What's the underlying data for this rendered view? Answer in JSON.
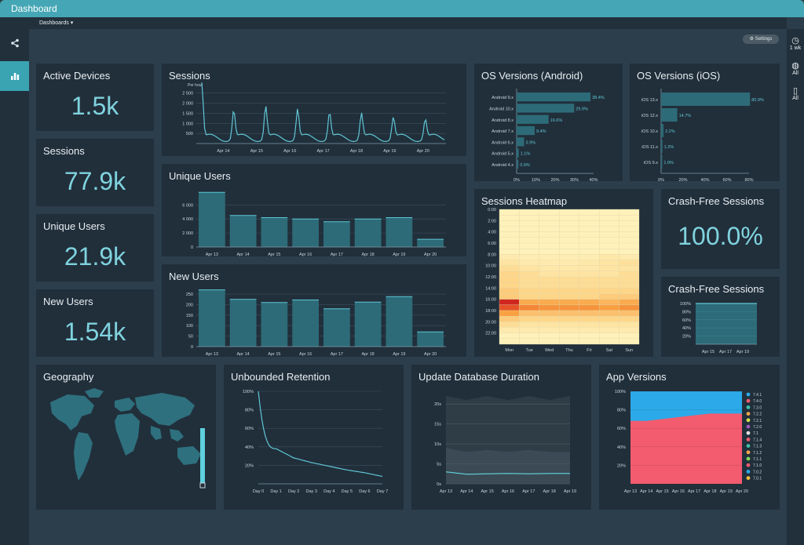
{
  "app": {
    "title": "Dashboard",
    "dashboards_label": "Dashboards",
    "settings_label": "Settings"
  },
  "rightnav": {
    "time": "1 wk",
    "region": "All",
    "device": "All"
  },
  "kpis": {
    "active_devices": {
      "title": "Active Devices",
      "value": "1.5k"
    },
    "sessions": {
      "title": "Sessions",
      "value": "77.9k"
    },
    "unique_users": {
      "title": "Unique Users",
      "value": "21.9k"
    },
    "new_users": {
      "title": "New Users",
      "value": "1.54k"
    },
    "crash_free": {
      "title": "Crash-Free Sessions",
      "value": "100.0%"
    }
  },
  "panels": {
    "sessions_chart": "Sessions",
    "unique_users_chart": "Unique Users",
    "new_users_chart": "New Users",
    "os_android": "OS Versions (Android)",
    "os_ios": "OS Versions (iOS)",
    "heatmap": "Sessions Heatmap",
    "crash_free_chart": "Crash-Free Sessions",
    "geography": "Geography",
    "retention": "Unbounded Retention",
    "update_db": "Update Database Duration",
    "app_versions": "App Versions"
  },
  "colors": {
    "accent": "#3aa4b3",
    "bar": "#2d6b78",
    "line": "#5fc6d4"
  },
  "chart_data": [
    {
      "id": "sessions",
      "type": "line",
      "ylabel": "Per hour",
      "yticks": [
        "2 500",
        "2 000",
        "1 500",
        "1 000",
        "500"
      ],
      "xticks": [
        "Apr 14",
        "Apr 15",
        "Apr 16",
        "Apr 17",
        "Apr 18",
        "Apr 19",
        "Apr 20"
      ],
      "ylim": [
        0,
        2800
      ],
      "peaks": [
        2750,
        1400,
        1600,
        1450,
        1300,
        1250,
        1050,
        950
      ]
    },
    {
      "id": "unique_users",
      "type": "bar",
      "categories": [
        "Apr 13",
        "Apr 14",
        "Apr 15",
        "Apr 16",
        "Apr 17",
        "Apr 18",
        "Apr 19",
        "Apr 20"
      ],
      "values": [
        7800,
        4500,
        4200,
        4000,
        3600,
        4000,
        4200,
        1100
      ],
      "yticks": [
        "6 000",
        "4 000",
        "2 000",
        "0"
      ],
      "ytick_values": [
        6000,
        4000,
        2000,
        0
      ],
      "ylim": [
        0,
        8500
      ]
    },
    {
      "id": "new_users",
      "type": "bar",
      "categories": [
        "Apr 13",
        "Apr 14",
        "Apr 15",
        "Apr 16",
        "Apr 17",
        "Apr 18",
        "Apr 19",
        "Apr 20"
      ],
      "values": [
        270,
        225,
        210,
        222,
        180,
        212,
        238,
        70
      ],
      "yticks": [
        "250",
        "200",
        "150",
        "100",
        "50",
        "0"
      ],
      "ytick_values": [
        250,
        200,
        150,
        100,
        50,
        0
      ],
      "ylim": [
        0,
        280
      ]
    },
    {
      "id": "os_android",
      "type": "bar",
      "orientation": "horizontal",
      "categories": [
        "Android 9.x",
        "Android 10.x",
        "Android 8.x",
        "Android 7.x",
        "Android 6.x",
        "Android 5.x",
        "Android 4.x"
      ],
      "values": [
        38.4,
        29.9,
        16.6,
        9.4,
        3.9,
        1.1,
        0.9
      ],
      "labels": [
        "38.4%",
        "29.9%",
        "16.6%",
        "9.4%",
        "3.9%",
        "1.1%",
        "0.9%"
      ],
      "xticks": [
        "0%",
        "10%",
        "20%",
        "30%",
        "40%"
      ],
      "xlim": [
        0,
        40
      ]
    },
    {
      "id": "os_ios",
      "type": "bar",
      "orientation": "horizontal",
      "categories": [
        "iOS 13.x",
        "iOS 12.x",
        "iOS 10.x",
        "iOS 11.x",
        "iOS 9.x"
      ],
      "values": [
        80.9,
        14.7,
        2.2,
        1.2,
        1.0
      ],
      "labels": [
        "80.9%",
        "14.7%",
        "2.2%",
        "1.2%",
        "1.0%"
      ],
      "xticks": [
        "0%",
        "20%",
        "40%",
        "60%",
        "80%"
      ],
      "xlim": [
        0,
        80
      ]
    },
    {
      "id": "heatmap",
      "type": "heatmap",
      "days": [
        "Mon",
        "Tue",
        "Wed",
        "Thu",
        "Fri",
        "Sat",
        "Sun"
      ],
      "hours": [
        "0:00",
        "2:00",
        "4:00",
        "6:00",
        "8:00",
        "10:00",
        "12:00",
        "14:00",
        "16:00",
        "18:00",
        "20:00",
        "22:00"
      ],
      "intensity": [
        [
          0.05,
          0.05,
          0.05,
          0.05,
          0.05,
          0.05,
          0.05
        ],
        [
          0.05,
          0.05,
          0.05,
          0.05,
          0.05,
          0.05,
          0.05
        ],
        [
          0.05,
          0.05,
          0.05,
          0.05,
          0.05,
          0.05,
          0.05
        ],
        [
          0.05,
          0.05,
          0.05,
          0.05,
          0.05,
          0.05,
          0.05
        ],
        [
          0.05,
          0.05,
          0.05,
          0.05,
          0.05,
          0.05,
          0.05
        ],
        [
          0.05,
          0.05,
          0.05,
          0.05,
          0.05,
          0.05,
          0.05
        ],
        [
          0.05,
          0.05,
          0.05,
          0.05,
          0.05,
          0.05,
          0.05
        ],
        [
          0.05,
          0.05,
          0.05,
          0.05,
          0.05,
          0.05,
          0.05
        ],
        [
          0.1,
          0.08,
          0.08,
          0.08,
          0.08,
          0.12,
          0.1
        ],
        [
          0.15,
          0.1,
          0.1,
          0.1,
          0.12,
          0.15,
          0.18
        ],
        [
          0.2,
          0.15,
          0.12,
          0.12,
          0.12,
          0.15,
          0.15
        ],
        [
          0.25,
          0.2,
          0.15,
          0.15,
          0.15,
          0.15,
          0.2
        ],
        [
          0.25,
          0.2,
          0.2,
          0.2,
          0.2,
          0.2,
          0.2
        ],
        [
          0.25,
          0.2,
          0.2,
          0.2,
          0.2,
          0.2,
          0.2
        ],
        [
          0.3,
          0.25,
          0.25,
          0.25,
          0.25,
          0.25,
          0.25
        ],
        [
          0.3,
          0.25,
          0.25,
          0.25,
          0.25,
          0.3,
          0.3
        ],
        [
          0.95,
          0.45,
          0.45,
          0.45,
          0.45,
          0.4,
          0.45
        ],
        [
          0.8,
          0.6,
          0.55,
          0.55,
          0.55,
          0.5,
          0.55
        ],
        [
          0.5,
          0.35,
          0.35,
          0.35,
          0.35,
          0.35,
          0.35
        ],
        [
          0.3,
          0.25,
          0.25,
          0.25,
          0.25,
          0.25,
          0.25
        ],
        [
          0.2,
          0.15,
          0.15,
          0.15,
          0.15,
          0.15,
          0.15
        ],
        [
          0.1,
          0.1,
          0.1,
          0.1,
          0.1,
          0.1,
          0.1
        ],
        [
          0.05,
          0.05,
          0.05,
          0.05,
          0.05,
          0.05,
          0.05
        ],
        [
          0.05,
          0.05,
          0.05,
          0.05,
          0.05,
          0.05,
          0.05
        ]
      ]
    },
    {
      "id": "crash_free",
      "type": "area",
      "yticks": [
        "100%",
        "80%",
        "60%",
        "40%",
        "20%"
      ],
      "xticks": [
        "Apr 15",
        "Apr 17",
        "Apr 19"
      ],
      "value": 100
    },
    {
      "id": "retention",
      "type": "line",
      "x": [
        "Day 0",
        "Day 1",
        "Day 2",
        "Day 3",
        "Day 4",
        "Day 5",
        "Day 6",
        "Day 7"
      ],
      "values": [
        100,
        38,
        28,
        23,
        19,
        15,
        12,
        8
      ],
      "yticks": [
        "100%",
        "80%",
        "60%",
        "40%",
        "20%"
      ],
      "ylim": [
        0,
        100
      ]
    },
    {
      "id": "update_db",
      "type": "area",
      "x": [
        "Apr 13",
        "Apr 14",
        "Apr 15",
        "Apr 16",
        "Apr 17",
        "Apr 18",
        "Apr 19"
      ],
      "yticks": [
        "20s",
        "15s",
        "10s",
        "5s",
        "0s"
      ],
      "ylim": [
        0,
        22
      ],
      "upper": [
        22,
        21,
        22,
        21,
        22,
        21,
        22
      ],
      "middle": [
        9,
        8,
        8.5,
        8,
        8.5,
        8,
        8
      ],
      "median": [
        3,
        2.4,
        2.5,
        2.6,
        2.5,
        2.6,
        2.6
      ]
    },
    {
      "id": "app_versions",
      "type": "area",
      "x": [
        "Apr 13",
        "Apr 14",
        "Apr 15",
        "Apr 16",
        "Apr 17",
        "Apr 18",
        "Apr 19",
        "Apr 20"
      ],
      "yticks": [
        "100%",
        "80%",
        "60%",
        "40%",
        "20%"
      ],
      "series_names": [
        "7.4.1",
        "7.4.0",
        "7.3.0",
        "7.2.2",
        "7.2.1",
        "7.2.0",
        "7.1",
        "7.1.4",
        "7.1.3",
        "7.1.2",
        "7.1.1",
        "7.1.0",
        "7.0.2",
        "7.0.1"
      ],
      "series_colors": [
        "#2ca9e8",
        "#f25c6e",
        "#3fc2a8",
        "#f5a54a",
        "#d6e24c",
        "#9b59b6",
        "#e0e0e0",
        "#f25c6e",
        "#3fc2a8",
        "#f5a54a",
        "#7ed957",
        "#f25c6e",
        "#2ca9e8",
        "#f5c142"
      ],
      "share_741": [
        32,
        32,
        30,
        28,
        26,
        24,
        24,
        24
      ]
    }
  ]
}
